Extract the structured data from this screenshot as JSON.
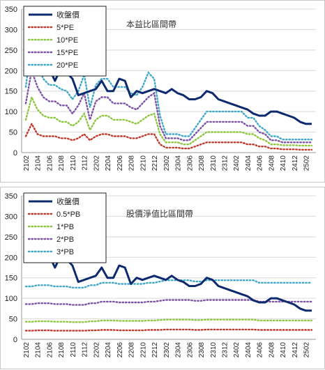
{
  "chart_data": [
    {
      "type": "line",
      "title": "本益比區間帶",
      "x": [
        "2102",
        "2103",
        "2104",
        "2105",
        "2106",
        "2107",
        "2108",
        "2109",
        "2110",
        "2111",
        "2112",
        "2201",
        "2202",
        "2203",
        "2204",
        "2205",
        "2206",
        "2207",
        "2208",
        "2209",
        "2210",
        "2211",
        "2212",
        "2301",
        "2302",
        "2303",
        "2304",
        "2305",
        "2306",
        "2307",
        "2308",
        "2309",
        "2310",
        "2311",
        "2312",
        "2401",
        "2402",
        "2403",
        "2404",
        "2405",
        "2406",
        "2407",
        "2408",
        "2409",
        "2410",
        "2411",
        "2412",
        "2501",
        "2502",
        "2503"
      ],
      "xticks": [
        "2102",
        "2104",
        "2106",
        "2108",
        "2110",
        "2112",
        "2202",
        "2204",
        "2206",
        "2208",
        "2210",
        "2212",
        "2302",
        "2304",
        "2306",
        "2308",
        "2310",
        "2312",
        "2402",
        "2404",
        "2406",
        "2408",
        "2410",
        "2412",
        "2502"
      ],
      "ylim": [
        0,
        350
      ],
      "yticks": [
        0,
        50,
        100,
        150,
        200,
        250,
        300,
        350
      ],
      "legend_position": "top-left",
      "series": [
        {
          "name": "收盤價",
          "style": "solid",
          "color": "#0d2a6e",
          "values": [
            210,
            205,
            215,
            215,
            205,
            175,
            205,
            195,
            180,
            140,
            145,
            150,
            155,
            175,
            150,
            150,
            180,
            175,
            135,
            150,
            145,
            150,
            155,
            150,
            145,
            155,
            145,
            140,
            130,
            130,
            135,
            150,
            145,
            130,
            125,
            120,
            115,
            110,
            105,
            95,
            90,
            90,
            100,
            100,
            95,
            90,
            85,
            75,
            70,
            70
          ]
        },
        {
          "name": "5*PE",
          "style": "dotted",
          "color": "#c0392b",
          "values": [
            40,
            70,
            45,
            40,
            40,
            40,
            35,
            35,
            30,
            35,
            45,
            30,
            40,
            45,
            45,
            40,
            40,
            40,
            35,
            35,
            40,
            45,
            45,
            20,
            12,
            12,
            12,
            10,
            10,
            15,
            20,
            25,
            25,
            25,
            25,
            25,
            25,
            25,
            20,
            20,
            15,
            15,
            10,
            10,
            8,
            8,
            8,
            7,
            7,
            7
          ]
        },
        {
          "name": "10*PE",
          "style": "dotted",
          "color": "#8dc63f",
          "values": [
            80,
            135,
            105,
            90,
            85,
            85,
            75,
            75,
            65,
            75,
            95,
            55,
            80,
            90,
            90,
            80,
            80,
            80,
            75,
            70,
            80,
            90,
            95,
            45,
            25,
            25,
            25,
            20,
            20,
            30,
            40,
            50,
            50,
            50,
            50,
            50,
            50,
            50,
            45,
            45,
            35,
            30,
            20,
            20,
            18,
            18,
            18,
            17,
            17,
            17
          ]
        },
        {
          "name": "15*PE",
          "style": "dotted",
          "color": "#7b52a6",
          "values": [
            120,
            200,
            160,
            135,
            125,
            125,
            115,
            115,
            95,
            115,
            145,
            80,
            125,
            135,
            135,
            120,
            120,
            120,
            110,
            105,
            120,
            135,
            145,
            65,
            35,
            35,
            35,
            30,
            30,
            45,
            60,
            75,
            75,
            75,
            75,
            75,
            75,
            75,
            65,
            65,
            50,
            45,
            30,
            30,
            25,
            25,
            25,
            25,
            25,
            25
          ]
        },
        {
          "name": "20*PE",
          "style": "dotted",
          "color": "#3fa8c8",
          "values": [
            160,
            270,
            215,
            180,
            165,
            165,
            155,
            150,
            130,
            150,
            190,
            110,
            165,
            180,
            180,
            160,
            160,
            160,
            145,
            140,
            160,
            195,
            180,
            90,
            45,
            45,
            45,
            40,
            40,
            60,
            80,
            100,
            100,
            100,
            100,
            100,
            100,
            100,
            85,
            85,
            65,
            55,
            40,
            40,
            32,
            32,
            32,
            32,
            32,
            32
          ]
        }
      ]
    },
    {
      "type": "line",
      "title": "股價淨值比區間帶",
      "x": [
        "2102",
        "2103",
        "2104",
        "2105",
        "2106",
        "2107",
        "2108",
        "2109",
        "2110",
        "2111",
        "2112",
        "2201",
        "2202",
        "2203",
        "2204",
        "2205",
        "2206",
        "2207",
        "2208",
        "2209",
        "2210",
        "2211",
        "2212",
        "2301",
        "2302",
        "2303",
        "2304",
        "2305",
        "2306",
        "2307",
        "2308",
        "2309",
        "2310",
        "2311",
        "2312",
        "2401",
        "2402",
        "2403",
        "2404",
        "2405",
        "2406",
        "2407",
        "2408",
        "2409",
        "2410",
        "2411",
        "2412",
        "2501",
        "2502",
        "2503"
      ],
      "xticks": [
        "2102",
        "2104",
        "2106",
        "2108",
        "2110",
        "2112",
        "2202",
        "2204",
        "2206",
        "2208",
        "2210",
        "2212",
        "2302",
        "2304",
        "2306",
        "2308",
        "2310",
        "2312",
        "2402",
        "2404",
        "2406",
        "2408",
        "2410",
        "2412",
        "2502"
      ],
      "ylim": [
        0,
        350
      ],
      "yticks": [
        0,
        50,
        100,
        150,
        200,
        250,
        300,
        350
      ],
      "legend_position": "top-left",
      "series": [
        {
          "name": "收盤價",
          "style": "solid",
          "color": "#0d2a6e",
          "values": [
            210,
            205,
            215,
            215,
            205,
            175,
            205,
            195,
            180,
            140,
            145,
            150,
            155,
            175,
            150,
            150,
            180,
            175,
            135,
            150,
            145,
            150,
            155,
            150,
            145,
            155,
            145,
            140,
            130,
            130,
            135,
            150,
            145,
            130,
            125,
            120,
            115,
            110,
            105,
            95,
            90,
            90,
            100,
            100,
            95,
            90,
            85,
            75,
            70,
            70
          ]
        },
        {
          "name": "0.5*PB",
          "style": "dotted",
          "color": "#c0392b",
          "values": [
            21,
            21,
            22,
            22,
            22,
            21,
            21,
            21,
            21,
            21,
            21,
            22,
            22,
            23,
            23,
            23,
            22,
            22,
            22,
            22,
            22,
            23,
            23,
            23,
            24,
            24,
            24,
            24,
            24,
            23,
            23,
            24,
            24,
            24,
            24,
            24,
            24,
            24,
            24,
            24,
            23,
            23,
            23,
            23,
            23,
            23,
            23,
            23,
            23,
            23
          ]
        },
        {
          "name": "1*PB",
          "style": "dotted",
          "color": "#8dc63f",
          "values": [
            43,
            43,
            44,
            44,
            44,
            43,
            43,
            43,
            42,
            42,
            42,
            44,
            44,
            46,
            46,
            46,
            45,
            45,
            45,
            45,
            45,
            46,
            46,
            47,
            48,
            48,
            48,
            48,
            48,
            47,
            47,
            48,
            48,
            48,
            48,
            48,
            48,
            48,
            48,
            48,
            46,
            46,
            46,
            46,
            46,
            46,
            46,
            46,
            46,
            46
          ]
        },
        {
          "name": "2*PB",
          "style": "dotted",
          "color": "#7b52a6",
          "values": [
            86,
            86,
            88,
            88,
            88,
            86,
            86,
            86,
            84,
            84,
            84,
            88,
            88,
            92,
            92,
            92,
            90,
            90,
            90,
            90,
            90,
            92,
            92,
            94,
            96,
            96,
            96,
            96,
            96,
            94,
            94,
            96,
            96,
            96,
            96,
            96,
            96,
            96,
            96,
            96,
            92,
            92,
            92,
            92,
            92,
            92,
            92,
            92,
            92,
            92
          ]
        },
        {
          "name": "3*PB",
          "style": "dotted",
          "color": "#3fa8c8",
          "values": [
            129,
            129,
            132,
            132,
            132,
            129,
            129,
            129,
            126,
            126,
            126,
            132,
            132,
            138,
            138,
            138,
            135,
            135,
            135,
            135,
            135,
            138,
            138,
            141,
            144,
            144,
            144,
            144,
            144,
            141,
            141,
            144,
            144,
            144,
            144,
            144,
            144,
            144,
            144,
            144,
            138,
            138,
            138,
            138,
            138,
            138,
            138,
            138,
            138,
            138
          ]
        }
      ]
    }
  ]
}
